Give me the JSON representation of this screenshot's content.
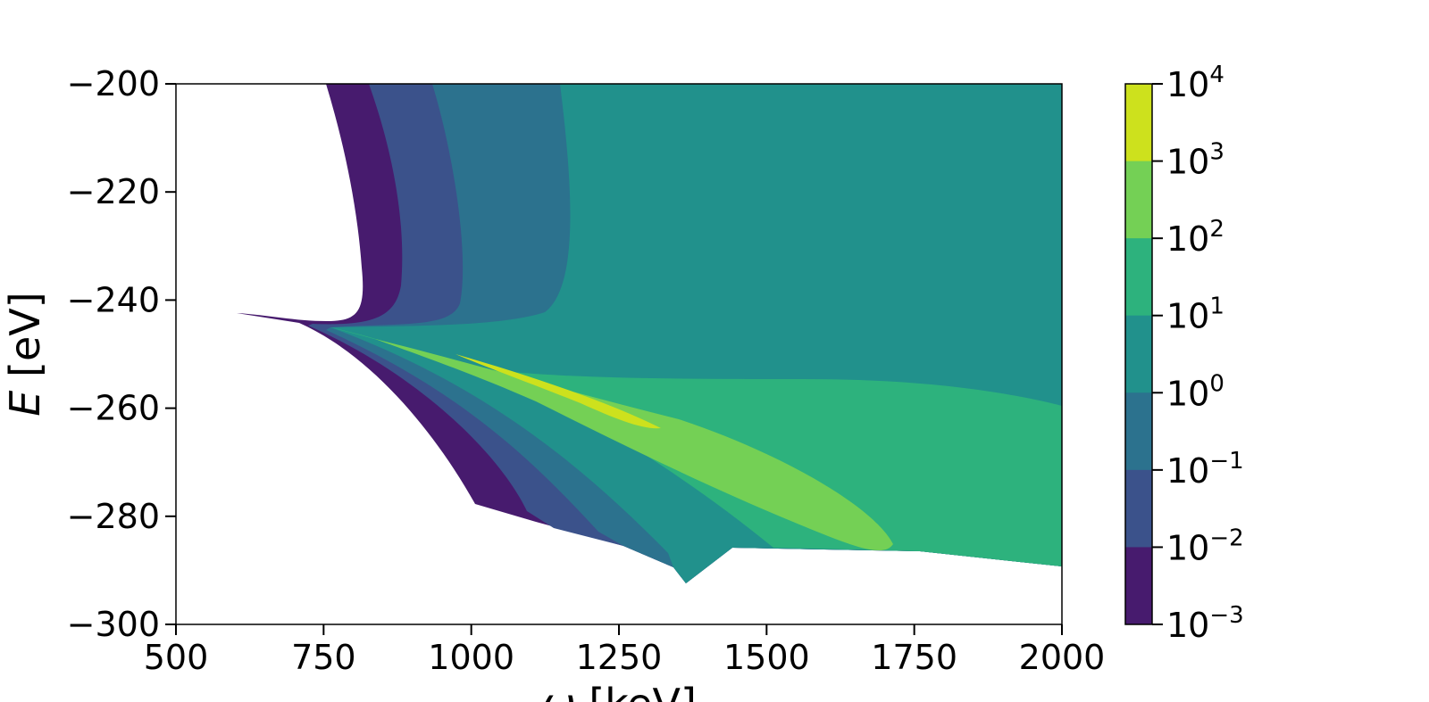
{
  "chart_data": {
    "type": "contourf",
    "xlabel_base": "ω",
    "xlabel_unit": "[keV]",
    "ylabel_var": "E",
    "ylabel_unit": "[eV]",
    "xlim": [
      500,
      2000
    ],
    "ylim": [
      -300,
      -200
    ],
    "x_ticks": [
      "500",
      "750",
      "1000",
      "1250",
      "1500",
      "1750",
      "2000"
    ],
    "x_tick_values": [
      500,
      750,
      1000,
      1250,
      1500,
      1750,
      2000
    ],
    "y_ticks": [
      "−200",
      "−220",
      "−240",
      "−260",
      "−280",
      "−300"
    ],
    "y_tick_values": [
      -200,
      -220,
      -240,
      -260,
      -280,
      -300
    ],
    "colorbar": {
      "scale": "log",
      "levels": [
        {
          "base": "10",
          "exp": "4"
        },
        {
          "base": "10",
          "exp": "3"
        },
        {
          "base": "10",
          "exp": "2"
        },
        {
          "base": "10",
          "exp": "1"
        },
        {
          "base": "10",
          "exp": "0"
        },
        {
          "base": "10",
          "exp": "−1"
        },
        {
          "base": "10",
          "exp": "−2"
        },
        {
          "base": "10",
          "exp": "−3"
        }
      ],
      "band_colors": [
        "#cde11d",
        "#74d055",
        "#2db27d",
        "#21918c",
        "#2c728e",
        "#3b528b",
        "#471b6e"
      ]
    },
    "region_colors": {
      "level_m3_m2": "#471b6e",
      "level_m2_m1": "#3b528b",
      "level_m1_0": "#2c728e",
      "level_0_1": "#21918c",
      "level_1_2": "#2db27d",
      "level_2_3": "#74d055",
      "level_3_4": "#cde11d"
    },
    "grid": false,
    "legend": "colorbar-right"
  }
}
